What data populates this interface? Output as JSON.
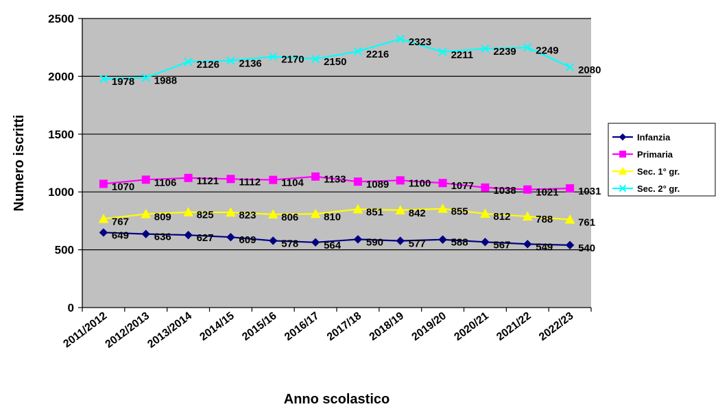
{
  "chart_data": {
    "type": "line",
    "title": "",
    "xlabel": "Anno scolastico",
    "ylabel": "Numero iscritti",
    "ylim": [
      0,
      2500
    ],
    "yticks": [
      0,
      500,
      1000,
      1500,
      2000,
      2500
    ],
    "grid": true,
    "legend_position": "right",
    "plot_background": "#c0c0c0",
    "categories": [
      "2011/2012",
      "2012/2013",
      "2013/2014",
      "2014/15",
      "2015/16",
      "2016/17",
      "2017/18",
      "2018/19",
      "2019/20",
      "2020/21",
      "2021/22",
      "2022/23"
    ],
    "series": [
      {
        "name": "Infanzia",
        "color": "#000080",
        "marker": "diamond",
        "values": [
          649,
          636,
          627,
          609,
          578,
          564,
          590,
          577,
          588,
          567,
          549,
          540
        ]
      },
      {
        "name": "Primaria",
        "color": "#ff00ff",
        "marker": "square",
        "values": [
          1070,
          1106,
          1121,
          1112,
          1104,
          1133,
          1089,
          1100,
          1077,
          1038,
          1021,
          1031
        ]
      },
      {
        "name": "Sec. 1° gr.",
        "color": "#ffff00",
        "marker": "triangle",
        "values": [
          767,
          809,
          825,
          823,
          806,
          810,
          851,
          842,
          855,
          812,
          788,
          761
        ]
      },
      {
        "name": "Sec. 2° gr.",
        "color": "#00ffff",
        "marker": "x",
        "values": [
          1978,
          1988,
          2126,
          2136,
          2170,
          2150,
          2216,
          2323,
          2211,
          2239,
          2249,
          2080
        ]
      }
    ]
  }
}
